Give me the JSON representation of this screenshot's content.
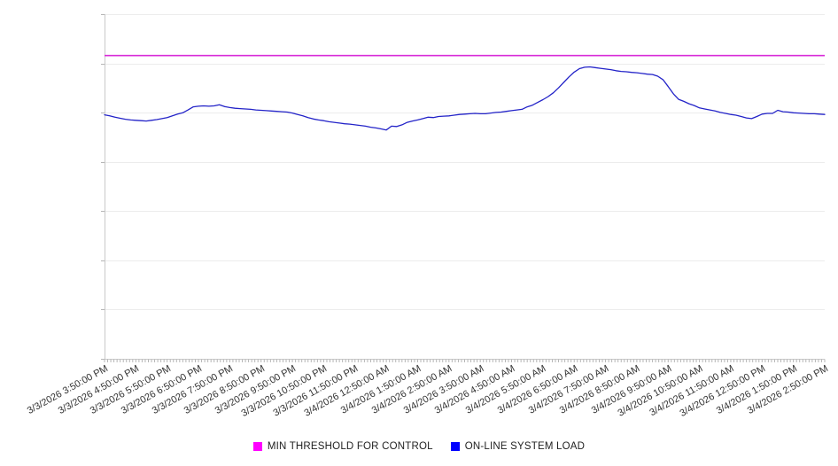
{
  "page": {
    "background": "#ffffff",
    "title": ""
  },
  "legend": {
    "items": [
      {
        "label": "MIN THRESHOLD FOR CONTROL",
        "color": "#FF00FF"
      },
      {
        "label": "ON-LINE SYSTEM LOAD",
        "color": "#0000FF"
      }
    ]
  },
  "chart_data": {
    "type": "line",
    "title": "",
    "xlabel": "",
    "ylabel": "",
    "grid": true,
    "legend_position": "bottom-center",
    "y_axis_labels_visible": false,
    "y_units": "relative load (y axis unlabeled in source)",
    "ylim": [
      0,
      100
    ],
    "y_gridline_count": 8,
    "x_minor_ticks_per_hour": 10,
    "x_tick_labels": [
      "3/3/2026 3:50:00 PM",
      "3/3/2026 4:50:00 PM",
      "3/3/2026 5:50:00 PM",
      "3/3/2026 6:50:00 PM",
      "3/3/2026 7:50:00 PM",
      "3/3/2026 8:50:00 PM",
      "3/3/2026 9:50:00 PM",
      "3/3/2026 10:50:00 PM",
      "3/3/2026 11:50:00 PM",
      "3/4/2026 12:50:00 AM",
      "3/4/2026 1:50:00 AM",
      "3/4/2026 2:50:00 AM",
      "3/4/2026 3:50:00 AM",
      "3/4/2026 4:50:00 AM",
      "3/4/2026 5:50:00 AM",
      "3/4/2026 6:50:00 AM",
      "3/4/2026 7:50:00 AM",
      "3/4/2026 8:50:00 AM",
      "3/4/2026 9:50:00 AM",
      "3/4/2026 10:50:00 AM",
      "3/4/2026 11:50:00 AM",
      "3/4/2026 12:50:00 PM",
      "3/4/2026 1:50:00 PM",
      "3/4/2026 2:50:00 PM"
    ],
    "series": [
      {
        "name": "MIN THRESHOLD FOR CONTROL",
        "type": "threshold-line",
        "color": "#D82BD8",
        "value": 88.0
      },
      {
        "name": "ON-LINE SYSTEM LOAD",
        "type": "line",
        "color": "#2323C8",
        "sample_interval_minutes": 10,
        "start": "3/3/2026 3:50:00 PM",
        "end": "3/4/2026 2:50:00 PM",
        "values": [
          70.8,
          70.5,
          70.1,
          69.8,
          69.5,
          69.3,
          69.2,
          69.1,
          69.0,
          69.2,
          69.4,
          69.7,
          70.0,
          70.5,
          71.0,
          71.4,
          72.2,
          73.1,
          73.3,
          73.4,
          73.3,
          73.4,
          73.7,
          73.2,
          72.9,
          72.7,
          72.6,
          72.5,
          72.4,
          72.2,
          72.1,
          72.0,
          71.9,
          71.8,
          71.7,
          71.6,
          71.3,
          70.9,
          70.5,
          70.0,
          69.6,
          69.3,
          69.1,
          68.8,
          68.6,
          68.4,
          68.2,
          68.1,
          67.9,
          67.7,
          67.5,
          67.2,
          67.0,
          66.7,
          66.4,
          67.5,
          67.4,
          67.9,
          68.6,
          69.0,
          69.3,
          69.7,
          70.1,
          70.0,
          70.3,
          70.4,
          70.5,
          70.7,
          70.9,
          71.0,
          71.1,
          71.2,
          71.1,
          71.1,
          71.3,
          71.5,
          71.6,
          71.8,
          72.0,
          72.2,
          72.4,
          73.1,
          73.6,
          74.4,
          75.2,
          76.1,
          77.2,
          78.6,
          80.2,
          81.8,
          83.2,
          84.2,
          84.6,
          84.7,
          84.5,
          84.3,
          84.1,
          83.9,
          83.6,
          83.4,
          83.3,
          83.1,
          83.0,
          82.8,
          82.6,
          82.5,
          82.0,
          81.0,
          79.0,
          76.9,
          75.3,
          74.7,
          74.0,
          73.5,
          72.8,
          72.5,
          72.2,
          71.9,
          71.5,
          71.2,
          70.9,
          70.7,
          70.3,
          69.9,
          69.7,
          70.3,
          71.0,
          71.2,
          71.2,
          72.1,
          71.7,
          71.6,
          71.4,
          71.3,
          71.2,
          71.1,
          71.1,
          71.0,
          70.9
        ]
      }
    ],
    "style": {
      "axis_color": "#c9c9c9",
      "gridline_color": "#ececec",
      "minor_tick_color": "#b5b5b5"
    }
  }
}
